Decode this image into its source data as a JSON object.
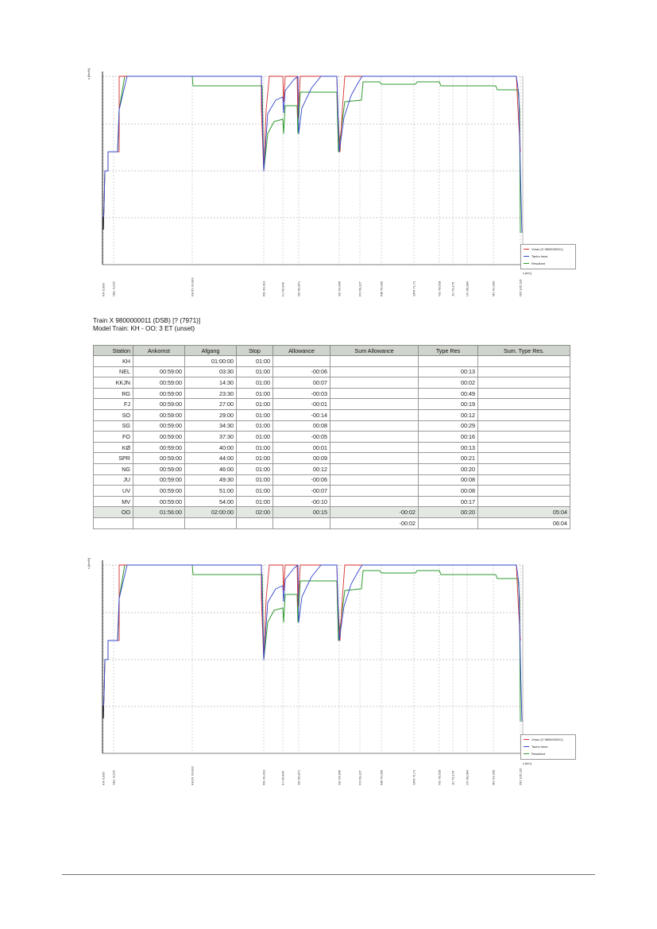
{
  "chart_data": [
    {
      "type": "line",
      "y_axis_label": "v [km/h]",
      "x_axis_label": "s [km]",
      "stations": [
        "KH 0,000",
        "NEL 4,216",
        "KKJN 24,033",
        "RG 40,413",
        "FJ 45,946",
        "SO 50,871",
        "SG 54,606",
        "FO 60,327",
        "KØ 70,039",
        "SPR 71,71",
        "NG 78,528",
        "JU 79,179",
        "UV 80,084",
        "MV 91,630",
        "OO 105,116"
      ],
      "legend": [
        "Vmax (X 9800000011)",
        "Tacho Imax",
        "Resultant"
      ],
      "series_colors": {
        "vmax": "#d62f2f",
        "tacho": "#3344cc",
        "resultant": "#2e9a2e"
      }
    },
    {
      "type": "line",
      "y_axis_label": "v [km/h]",
      "x_axis_label": "s [km]",
      "stations": [
        "KH 0,000",
        "NEL 4,216",
        "KKJN 24,033",
        "RG 40,413",
        "FJ 45,946",
        "SO 50,871",
        "SG 54,606",
        "FO 60,327",
        "KØ 70,039",
        "SPR 71,71",
        "NG 78,528",
        "JU 79,179",
        "UV 80,084",
        "MV 91,630",
        "OO 105,116"
      ],
      "legend": [
        "Vmax (X 9800000011)",
        "Tacho Imax",
        "Resultant"
      ],
      "series_colors": {
        "vmax": "#d62f2f",
        "tacho": "#3344cc",
        "resultant": "#2e9a2e"
      }
    }
  ],
  "caption": {
    "line1": "Train X 9800000011 (DSB) [? (7971)]",
    "line2": "Model Train: KH - OO: 3 ET (unset)"
  },
  "table": {
    "headers": [
      "Station",
      "Ankomst",
      "Afgang",
      "Stop",
      "Allowance",
      "Sum Allowance",
      "Type Res",
      "Sum. Type Res."
    ],
    "rows": [
      [
        "KH",
        "",
        "01:00:00",
        "01:00",
        "",
        "",
        "",
        ""
      ],
      [
        "NEL",
        "00:59:00",
        "03:30",
        "01:00",
        "-00:06",
        "",
        "00:13",
        ""
      ],
      [
        "KKJN",
        "00:59:00",
        "14:30",
        "01:00",
        "00:07",
        "",
        "00:02",
        ""
      ],
      [
        "RG",
        "00:59:00",
        "23:30",
        "01:00",
        "-00:03",
        "",
        "00:49",
        ""
      ],
      [
        "FJ",
        "00:59:00",
        "27:00",
        "01:00",
        "-00:01",
        "",
        "00:19",
        ""
      ],
      [
        "SO",
        "00:59:00",
        "29:00",
        "01:00",
        "-00:14",
        "",
        "00:12",
        ""
      ],
      [
        "SG",
        "00:59:00",
        "34:30",
        "01:00",
        "00:08",
        "",
        "00:29",
        ""
      ],
      [
        "FO",
        "00:59:00",
        "37:30",
        "01:00",
        "-00:05",
        "",
        "00:16",
        ""
      ],
      [
        "KØ",
        "00:59:00",
        "40:00",
        "01:00",
        "00:01",
        "",
        "00:13",
        ""
      ],
      [
        "SPR",
        "00:59:00",
        "44:00",
        "01:00",
        "00:09",
        "",
        "00:21",
        ""
      ],
      [
        "NG",
        "00:59:00",
        "46:00",
        "01:00",
        "00:12",
        "",
        "00:20",
        ""
      ],
      [
        "JU",
        "00:59:00",
        "49:30",
        "01:00",
        "-00:06",
        "",
        "00:08",
        ""
      ],
      [
        "UV",
        "00:59:00",
        "51:00",
        "01:00",
        "-00:07",
        "",
        "00:08",
        ""
      ],
      [
        "MV",
        "00:59:00",
        "54:00",
        "01:00",
        "-00:10",
        "",
        "00:17",
        ""
      ],
      [
        "OO",
        "01:56:00",
        "02:00:00",
        "02:00",
        "00:15",
        "-00:02",
        "00:20",
        "05:04"
      ],
      [
        "",
        "",
        "",
        "",
        "",
        "-00:02",
        "",
        "06:04"
      ]
    ]
  }
}
